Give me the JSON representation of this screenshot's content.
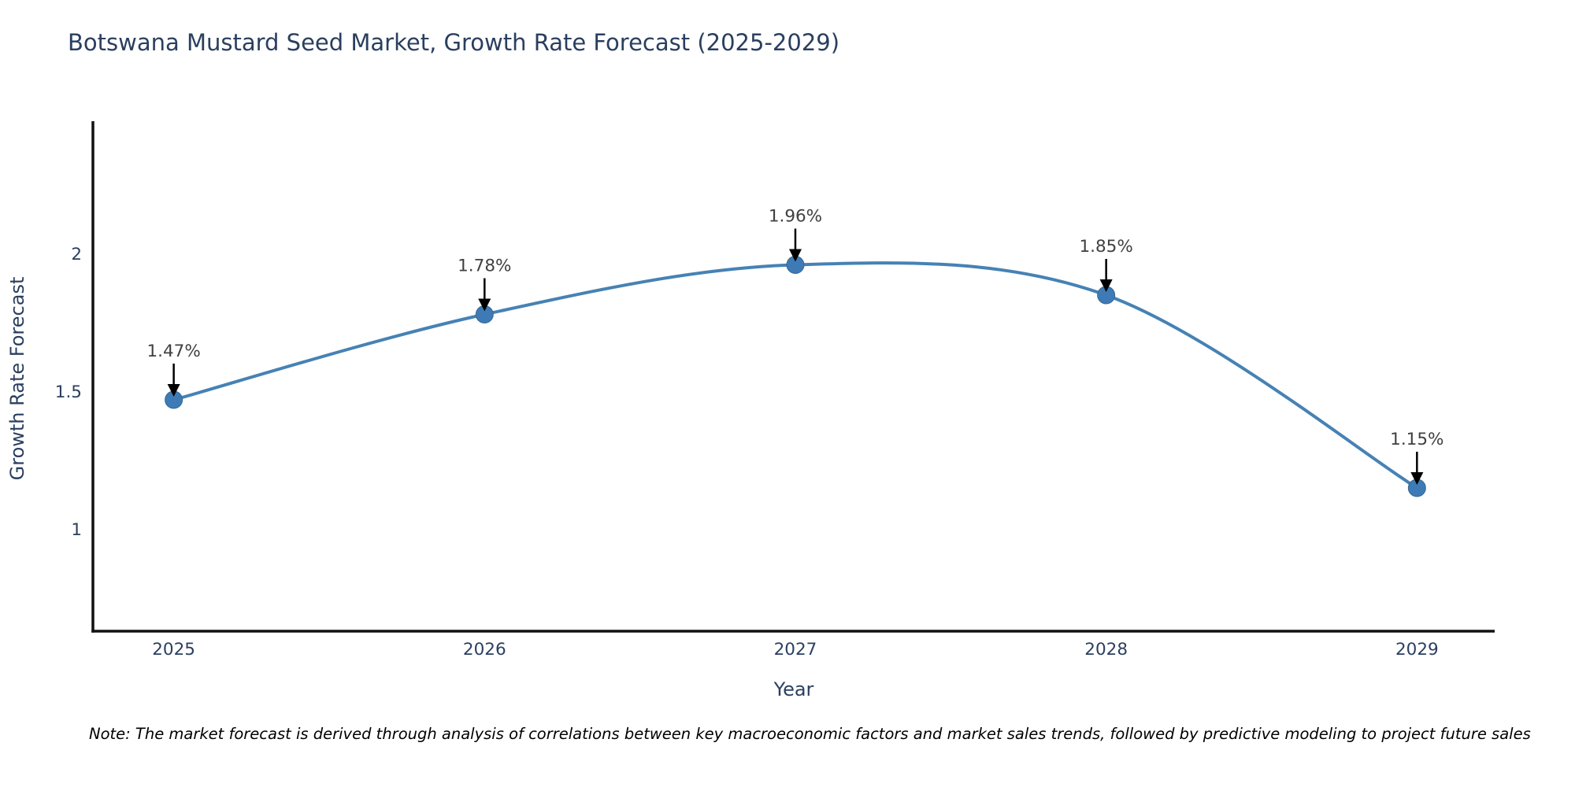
{
  "title": "Botswana Mustard Seed Market, Growth Rate Forecast (2025-2029)",
  "note": "Note: The market forecast is derived through analysis of correlations between key macroeconomic factors and market sales trends, followed by predictive modeling to project future sales",
  "chart_data": {
    "type": "line",
    "title": "Botswana Mustard Seed Market, Growth Rate Forecast (2025-2029)",
    "xlabel": "Year",
    "ylabel": "Growth Rate Forecast",
    "categories": [
      "2025",
      "2026",
      "2027",
      "2028",
      "2029"
    ],
    "x": [
      2025,
      2026,
      2027,
      2028,
      2029
    ],
    "values": [
      1.47,
      1.78,
      1.96,
      1.85,
      1.15
    ],
    "point_labels": [
      "1.47%",
      "1.78%",
      "1.96%",
      "1.85%",
      "1.15%"
    ],
    "yticks": [
      1,
      1.5,
      2
    ],
    "ytick_labels": [
      "1",
      "1.5",
      "2"
    ],
    "ylim": [
      0.63,
      2.47
    ],
    "xlim": [
      2024.74,
      2029.25
    ],
    "line_shape": "spline",
    "grid": false,
    "legend": "none",
    "colors": {
      "line": "#4682b4",
      "marker": "#3e7bb6",
      "marker_edge": "#35688f",
      "axis": "#111111",
      "title_text": "#2a3f5f",
      "tick_text": "#2a3f5f",
      "annotation_text": "#404040",
      "arrow": "#000000",
      "background": "#ffffff"
    }
  }
}
